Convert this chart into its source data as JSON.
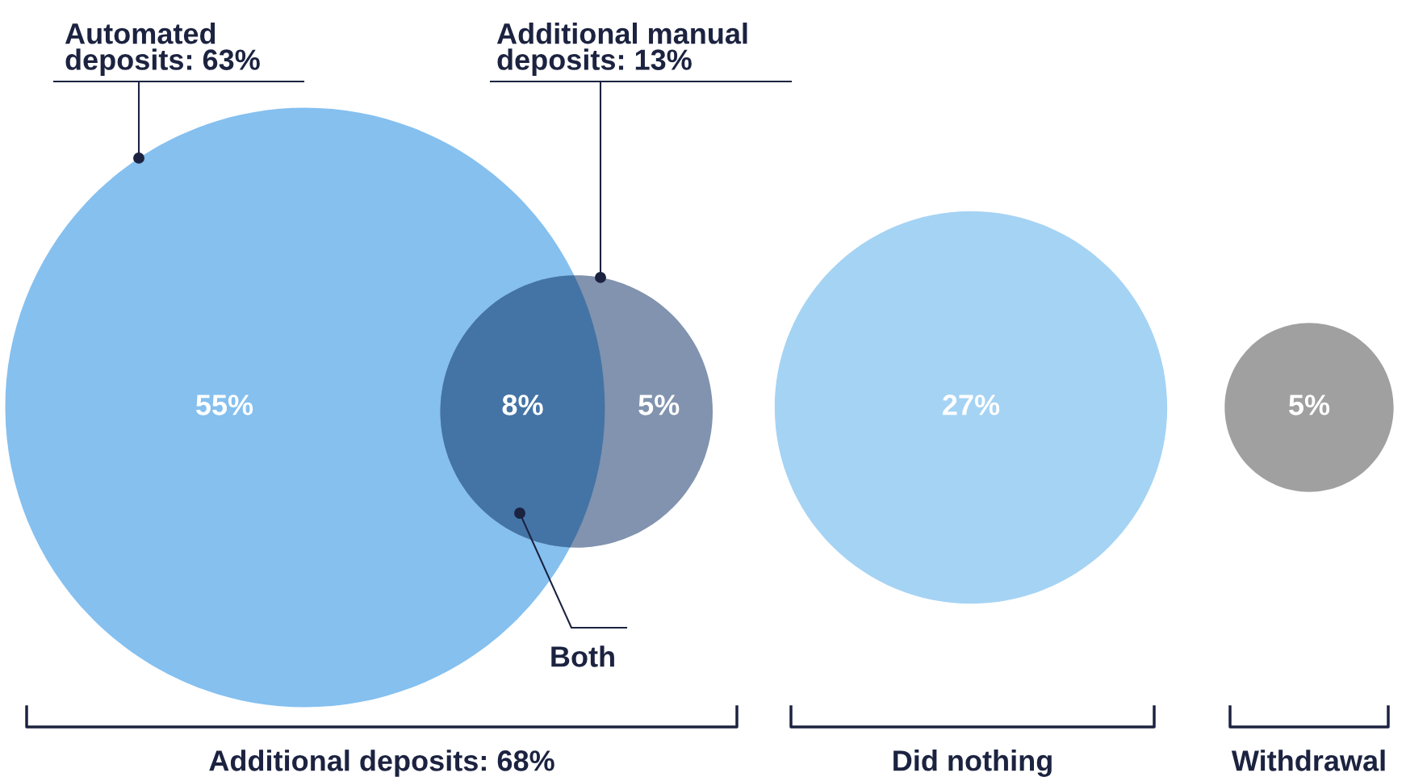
{
  "chart_data": {
    "type": "other",
    "values": [
      55,
      8,
      5,
      27,
      5
    ],
    "value_labels": [
      "55%",
      "8%",
      "5%",
      "27%",
      "5%"
    ],
    "colors": [
      "#85c0ef",
      "#4474a6",
      "#8193ae",
      "#a5d3f4",
      "#a0a0a0"
    ],
    "annotations": [
      "Automated\ndeposits: 63%",
      "Additional manual\ndeposits: 13%",
      "Both",
      "Additional deposits: 68%",
      "Did nothing",
      "Withdrawal"
    ]
  }
}
